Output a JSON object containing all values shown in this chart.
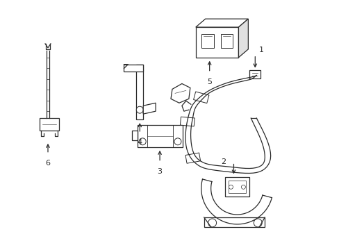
{
  "background_color": "#ffffff",
  "line_color": "#2a2a2a",
  "figsize": [
    4.89,
    3.6
  ],
  "dpi": 100
}
